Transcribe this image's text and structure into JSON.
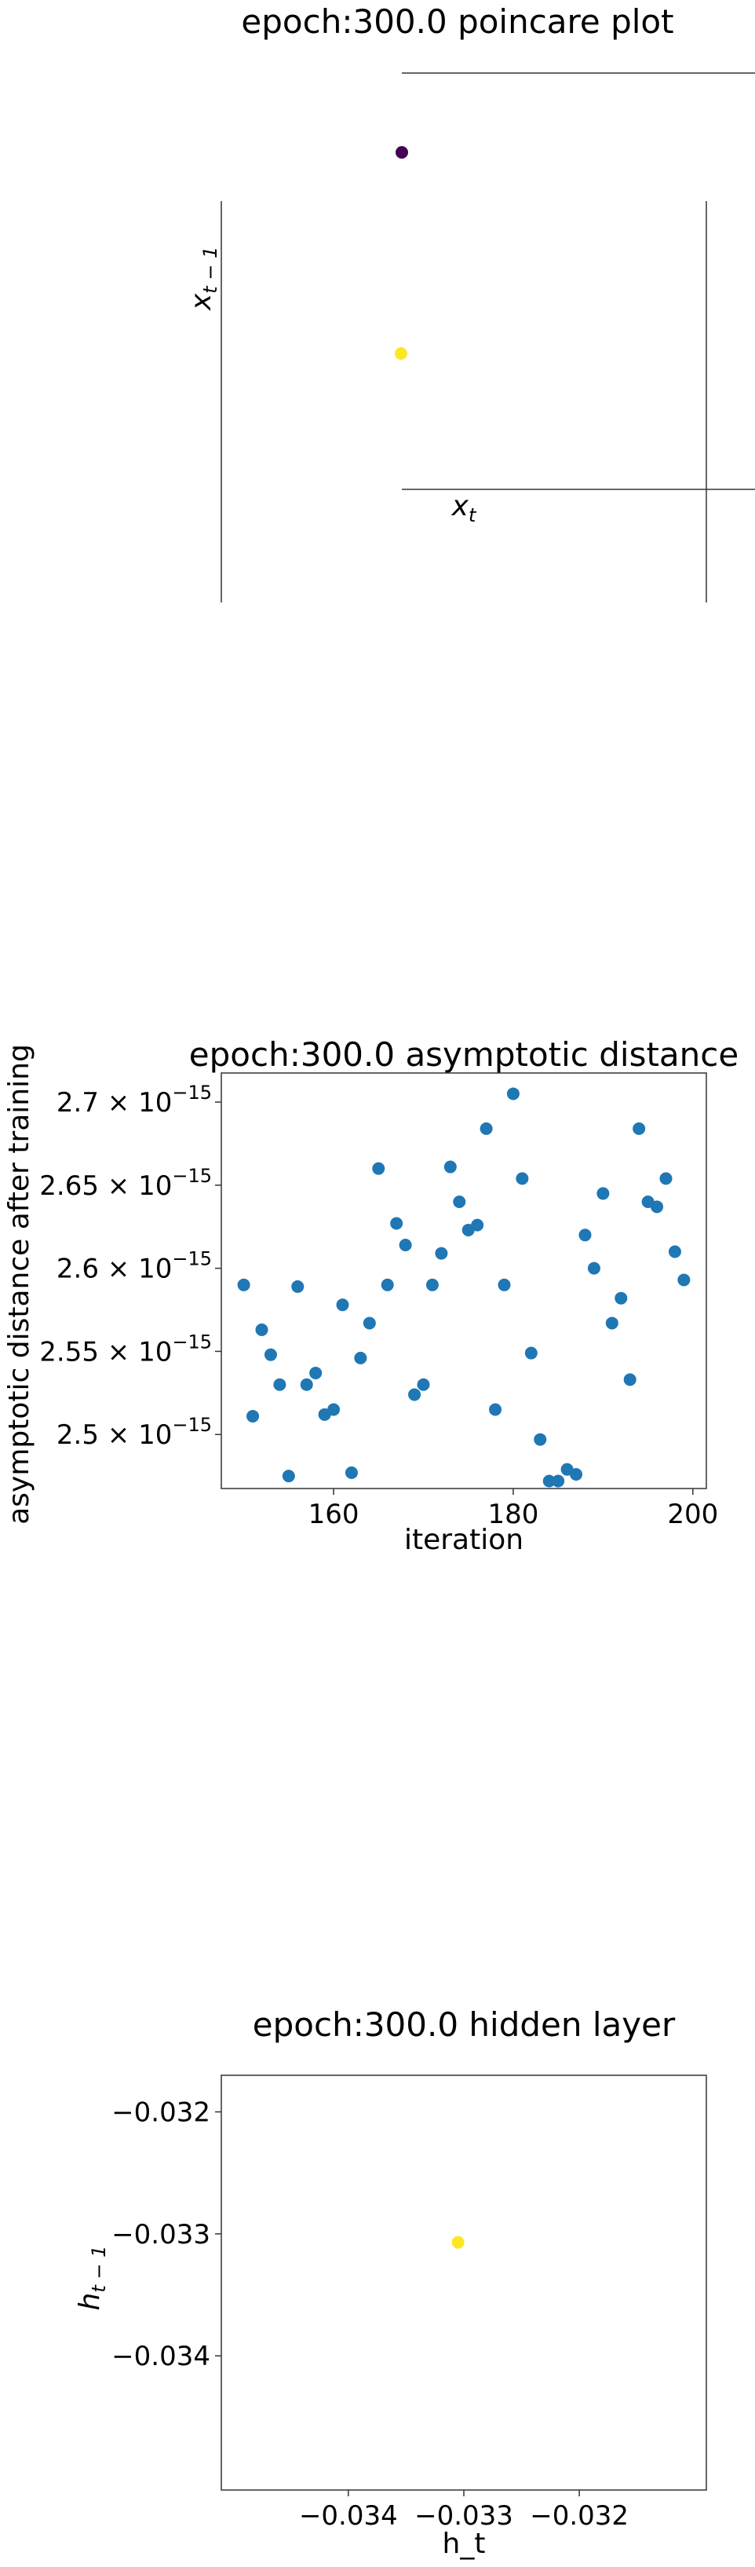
{
  "chart_data": [
    {
      "type": "scatter",
      "title": "epoch:300.0 poincare plot",
      "xlabel": "x_t",
      "ylabel": "x_{t-1}",
      "colors": [
        "#440154",
        "#fde725"
      ],
      "points": [
        {
          "label": "point-1",
          "color": "#440154"
        },
        {
          "label": "point-2",
          "color": "#fde725"
        }
      ],
      "grid": false
    },
    {
      "type": "scatter",
      "title": "epoch:300.0 asymptotic distance",
      "xlabel": "iteration",
      "ylabel": "asymptotic distance after training",
      "x_ticks": [
        "160",
        "180",
        "200"
      ],
      "y_ticks": [
        "2.5",
        "2.55",
        "2.6",
        "2.65",
        "2.7"
      ],
      "y_exponent": "−15",
      "xlim": [
        147.5,
        201.5
      ],
      "ylim": [
        2.4675,
        2.7175
      ],
      "y_scale_factor": "1e-15",
      "color": "#1f77b4",
      "x": [
        150,
        151,
        152,
        153,
        154,
        155,
        156,
        157,
        158,
        159,
        160,
        161,
        162,
        163,
        164,
        165,
        166,
        167,
        168,
        169,
        170,
        171,
        172,
        173,
        174,
        175,
        176,
        177,
        178,
        179,
        180,
        181,
        182,
        183,
        184,
        185,
        186,
        187,
        188,
        189,
        190,
        191,
        192,
        193,
        194,
        195,
        196,
        197,
        198,
        199
      ],
      "y": [
        2.59,
        2.511,
        2.563,
        2.548,
        2.53,
        2.475,
        2.589,
        2.53,
        2.537,
        2.512,
        2.515,
        2.578,
        2.477,
        2.546,
        2.567,
        2.66,
        2.59,
        2.627,
        2.614,
        2.524,
        2.53,
        2.59,
        2.609,
        2.661,
        2.64,
        2.623,
        2.626,
        2.684,
        2.515,
        2.59,
        2.705,
        2.654,
        2.549,
        2.497,
        2.472,
        2.472,
        2.479,
        2.476,
        2.62,
        2.6,
        2.645,
        2.567,
        2.582,
        2.533,
        2.684,
        2.64,
        2.637,
        2.654,
        2.61,
        2.593
      ],
      "grid": false
    },
    {
      "type": "scatter",
      "title": "epoch:300.0 hidden layer",
      "xlabel": "h_t",
      "ylabel": "h_{t-1}",
      "x_ticks": [
        "−0.034",
        "−0.033",
        "−0.032"
      ],
      "y_ticks": [
        "−0.032",
        "−0.033",
        "−0.034"
      ],
      "xlim": [
        -0.0351,
        -0.0309
      ],
      "ylim": [
        -0.0351,
        -0.0317
      ],
      "x": [
        -0.03305
      ],
      "y": [
        -0.03307
      ],
      "color": "#fde725",
      "grid": false
    }
  ]
}
